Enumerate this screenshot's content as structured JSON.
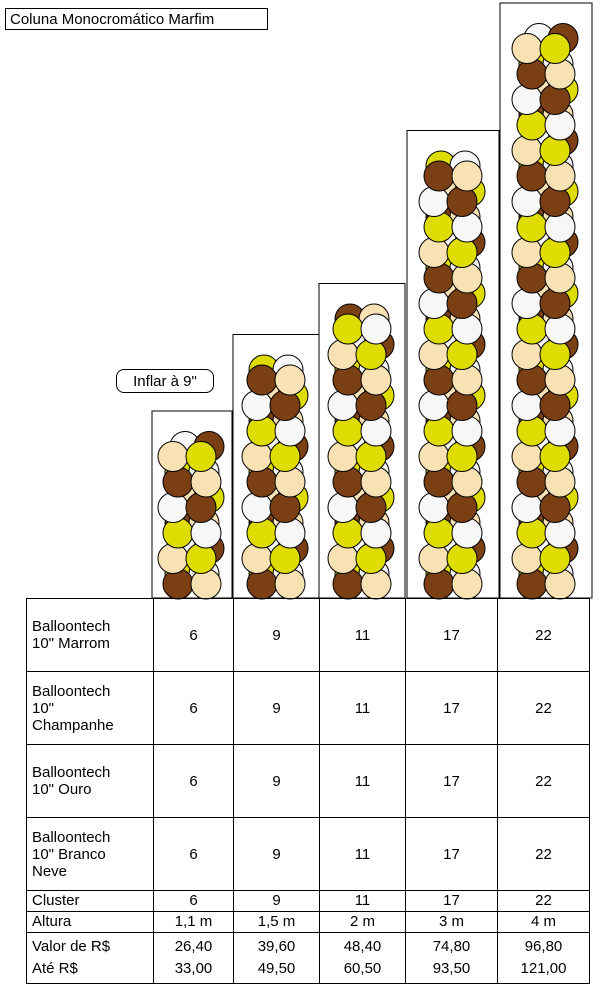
{
  "title": "Coluna Monocromático Marfim",
  "inflate_label": "Inflar à 9\"",
  "colors": {
    "brown": "#7b3f14",
    "cream": "#f8e2b4",
    "gold": "#dedc00",
    "white": "#f7f7f7"
  },
  "columns": [
    {
      "height_label": "1,1 m",
      "clusters": 6
    },
    {
      "height_label": "1,5 m",
      "clusters": 9
    },
    {
      "height_label": "2 m",
      "clusters": 11
    },
    {
      "height_label": "3 m",
      "clusters": 17
    },
    {
      "height_label": "4 m",
      "clusters": 22
    }
  ],
  "table": {
    "rows": [
      {
        "label_lines": [
          "Balloontech",
          "10\" Marrom"
        ],
        "values": [
          "6",
          "9",
          "11",
          "17",
          "22"
        ]
      },
      {
        "label_lines": [
          "Balloontech",
          "10\"",
          "Champanhe"
        ],
        "values": [
          "6",
          "9",
          "11",
          "17",
          "22"
        ]
      },
      {
        "label_lines": [
          "Balloontech",
          "10\" Ouro"
        ],
        "values": [
          "6",
          "9",
          "11",
          "17",
          "22"
        ]
      },
      {
        "label_lines": [
          "Balloontech",
          "10\" Branco",
          "Neve"
        ],
        "values": [
          "6",
          "9",
          "11",
          "17",
          "22"
        ]
      }
    ],
    "cluster": {
      "label": "Cluster",
      "values": [
        "6",
        "9",
        "11",
        "17",
        "22"
      ]
    },
    "height": {
      "label": "Altura",
      "values": [
        "1,1 m",
        "1,5 m",
        "2 m",
        "3 m",
        "4 m"
      ]
    },
    "price_from": {
      "label": "Valor de  R$",
      "values": [
        "26,40",
        "39,60",
        "48,40",
        "74,80",
        "96,80"
      ]
    },
    "price_to": {
      "label": "Até R$",
      "values": [
        "33,00",
        "49,50",
        "60,50",
        "93,50",
        "121,00"
      ]
    }
  }
}
